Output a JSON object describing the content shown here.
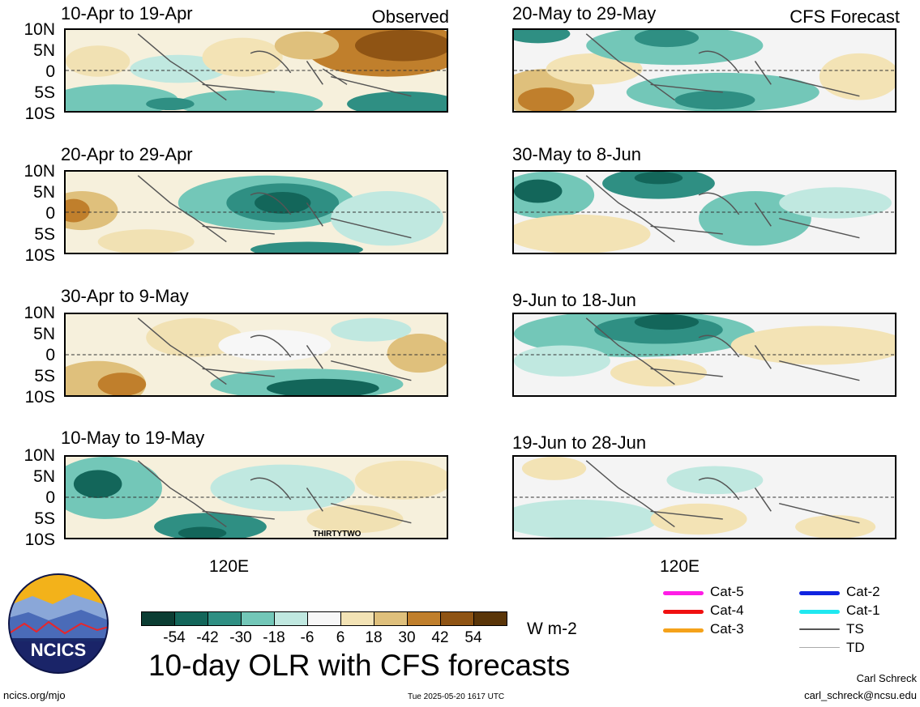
{
  "panels_left": [
    {
      "title": "10-Apr to 19-Apr",
      "tag": "Observed"
    },
    {
      "title": "20-Apr to 29-Apr",
      "tag": ""
    },
    {
      "title": "30-Apr to 9-May",
      "tag": ""
    },
    {
      "title": "10-May to 19-May",
      "tag": ""
    }
  ],
  "panels_right": [
    {
      "title": "20-May to 29-May",
      "tag": "CFS Forecast"
    },
    {
      "title": "30-May to 8-Jun",
      "tag": ""
    },
    {
      "title": "9-Jun to 18-Jun",
      "tag": ""
    },
    {
      "title": "19-Jun to 28-Jun",
      "tag": ""
    }
  ],
  "lat_labels": [
    "10N",
    "5N",
    "0",
    "5S",
    "10S"
  ],
  "lon_label": "120E",
  "storm_label": "THIRTYTWO",
  "colorbar": {
    "colors": [
      "#0b3d33",
      "#13665a",
      "#2f8f83",
      "#73c7b8",
      "#c0e8e0",
      "#f7f7f7",
      "#f3e3b5",
      "#dfc07c",
      "#c07f2c",
      "#8f5414",
      "#5a3508"
    ],
    "ticks": [
      "-54",
      "-42",
      "-30",
      "-18",
      "-6",
      "6",
      "18",
      "30",
      "42",
      "54"
    ],
    "units": "W m-2"
  },
  "main_title": "10-day OLR with CFS forecasts",
  "logo_text": "NCICS",
  "footer": {
    "url": "ncics.org/mjo",
    "timestamp": "Tue 2025-05-20 1617 UTC",
    "author": "Carl Schreck",
    "email": "carl_schreck@ncsu.edu"
  },
  "legend": [
    {
      "label": "Cat-5",
      "color": "#ff1de6"
    },
    {
      "label": "Cat-4",
      "color": "#f01010"
    },
    {
      "label": "Cat-3",
      "color": "#f5a21a"
    },
    {
      "label": "Cat-2",
      "color": "#1024e0"
    },
    {
      "label": "Cat-1",
      "color": "#20e8f0"
    },
    {
      "label": "TS",
      "color": "#555555"
    },
    {
      "label": "TD",
      "color": "#aaaaaa"
    }
  ]
}
